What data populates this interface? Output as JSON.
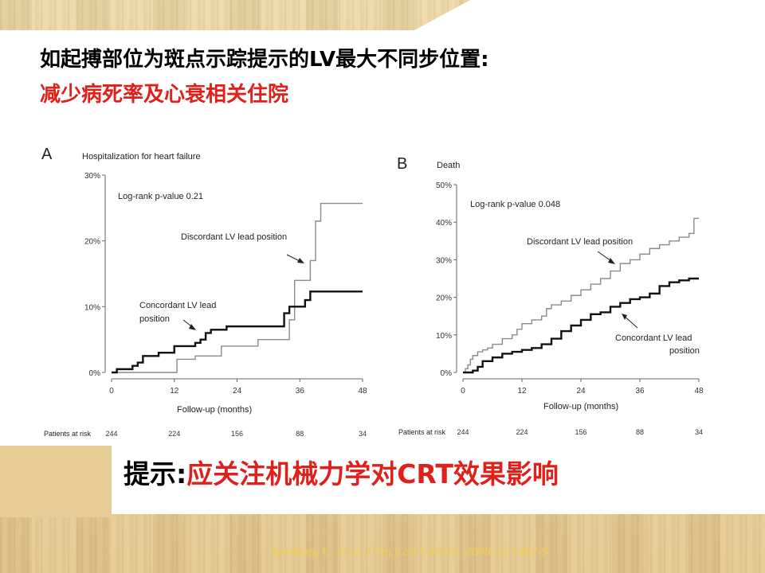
{
  "slide": {
    "title_line1": "如起搏部位为斑点示踪提示的LV最大不同步位置:",
    "title_line2": "减少病死率及心衰相关住院",
    "hint_prefix": "提示:",
    "hint_text": "应关注机械力学对CRT效果影响",
    "citation": "Ypenburg C, et al.  J Am Coll Cardiol. 2008;52:1402-9."
  },
  "chart_data": [
    {
      "type": "line",
      "panel_label": "A",
      "title": "Hospitalization for heart failure",
      "xlabel": "Follow-up (months)",
      "ylabel": "",
      "xlim": [
        0,
        48
      ],
      "ylim": [
        0,
        30
      ],
      "x_ticks": [
        "0",
        "12",
        "24",
        "36",
        "48"
      ],
      "y_ticks": [
        "0%",
        "10%",
        "20%",
        "30%"
      ],
      "annotation": "Log-rank p-value 0.21",
      "risk_label": "Patients at risk",
      "patients_at_risk": [
        "244",
        "224",
        "156",
        "88",
        "34"
      ],
      "series": [
        {
          "name": "Discordant LV lead position",
          "color": "#8a8a8a",
          "x": [
            0,
            12,
            12.5,
            16,
            20,
            21,
            27,
            28,
            33,
            34,
            35,
            37,
            38,
            39,
            40,
            48
          ],
          "y": [
            0,
            0,
            2,
            2.5,
            2.5,
            4,
            4,
            5,
            5,
            8,
            14,
            14,
            17,
            23,
            25.7,
            25.7
          ]
        },
        {
          "name": "Concordant LV lead position",
          "color": "#111111",
          "x": [
            0,
            1,
            3,
            4,
            5,
            6,
            7,
            9,
            11,
            12,
            13,
            16,
            17,
            18,
            19,
            22,
            31,
            33,
            34,
            36,
            37,
            38,
            48
          ],
          "y": [
            0,
            0.5,
            0.5,
            1,
            1.5,
            2.5,
            2.5,
            3,
            3,
            4,
            4,
            4.5,
            5,
            6,
            6.5,
            7,
            7,
            9,
            10,
            10,
            11,
            12.3,
            12.3
          ]
        }
      ]
    },
    {
      "type": "line",
      "panel_label": "B",
      "title": "Death",
      "xlabel": "Follow-up (months)",
      "ylabel": "",
      "xlim": [
        0,
        48
      ],
      "ylim": [
        0,
        50
      ],
      "x_ticks": [
        "0",
        "12",
        "24",
        "36",
        "48"
      ],
      "y_ticks": [
        "0%",
        "10%",
        "20%",
        "30%",
        "40%",
        "50%"
      ],
      "annotation": "Log-rank p-value 0.048",
      "risk_label": "Patients at risk",
      "patients_at_risk": [
        "244",
        "224",
        "156",
        "88",
        "34"
      ],
      "series": [
        {
          "name": "Discordant LV lead position",
          "color": "#8a8a8a",
          "x": [
            0,
            0.5,
            1,
            1.5,
            2,
            3,
            4,
            5,
            6,
            8,
            10,
            11,
            12,
            14,
            16,
            17,
            18,
            20,
            22,
            24,
            26,
            28,
            30,
            32,
            34,
            36,
            38,
            40,
            42,
            44,
            46,
            47,
            48
          ],
          "y": [
            0,
            1,
            2,
            3.5,
            4.5,
            5.5,
            6,
            6.5,
            7.5,
            9,
            10,
            11.5,
            13,
            14,
            15,
            17,
            18,
            19,
            20.5,
            22,
            23.5,
            25,
            27,
            29,
            30,
            31.5,
            33,
            34,
            35,
            36,
            37,
            41,
            41
          ]
        },
        {
          "name": "Concordant LV lead position",
          "color": "#111111",
          "x": [
            0,
            1,
            2,
            3,
            4,
            6,
            8,
            10,
            12,
            14,
            16,
            18,
            20,
            22,
            24,
            26,
            28,
            30,
            32,
            34,
            36,
            38,
            40,
            42,
            44,
            46,
            48
          ],
          "y": [
            0,
            0,
            0.5,
            1.5,
            3,
            4,
            5,
            5.5,
            6,
            6.5,
            7.5,
            9,
            11,
            12.5,
            14,
            15.5,
            16,
            17.5,
            18.5,
            19.5,
            20,
            21,
            23,
            24,
            24.5,
            25,
            25
          ]
        }
      ]
    }
  ]
}
